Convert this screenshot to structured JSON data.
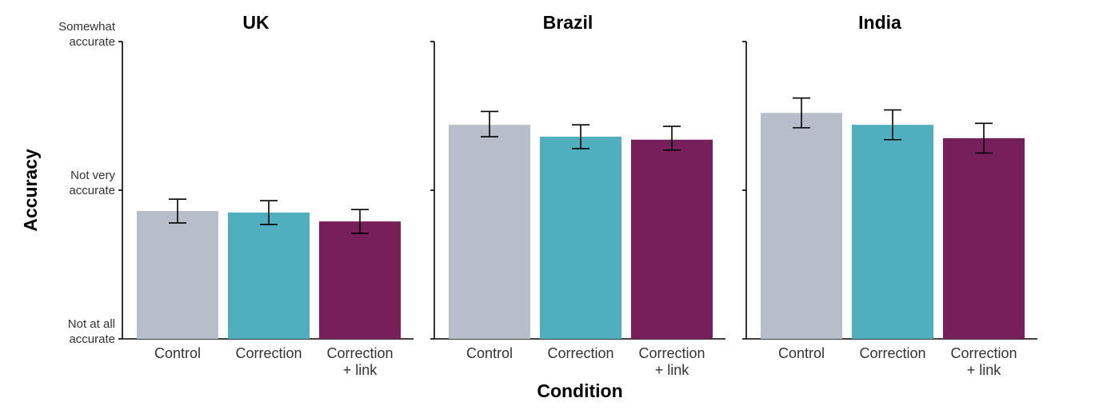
{
  "chart_data": {
    "type": "bar",
    "xlabel": "Condition",
    "ylabel": "Accuracy",
    "ylim": [
      1,
      3
    ],
    "yticks": [
      {
        "value": 1,
        "lines": [
          "Not at all",
          "accurate"
        ]
      },
      {
        "value": 2,
        "lines": [
          "Not very",
          "accurate"
        ]
      },
      {
        "value": 3,
        "lines": [
          "Somewhat",
          "accurate"
        ]
      }
    ],
    "categories": [
      {
        "lines": [
          "Control"
        ],
        "color": "#b8bec9"
      },
      {
        "lines": [
          "Correction"
        ],
        "color": "#50afbf"
      },
      {
        "lines": [
          "Correction",
          "+ link"
        ],
        "color": "#771f5b"
      }
    ],
    "panels": [
      {
        "title": "UK",
        "values": [
          1.86,
          1.85,
          1.79
        ],
        "err_low": [
          1.78,
          1.77,
          1.71
        ],
        "err_high": [
          1.94,
          1.93,
          1.87
        ]
      },
      {
        "title": "Brazil",
        "values": [
          2.44,
          2.36,
          2.34
        ],
        "err_low": [
          2.36,
          2.28,
          2.27
        ],
        "err_high": [
          2.53,
          2.44,
          2.43
        ]
      },
      {
        "title": "India",
        "values": [
          2.52,
          2.44,
          2.35
        ],
        "err_low": [
          2.42,
          2.34,
          2.25
        ],
        "err_high": [
          2.62,
          2.54,
          2.45
        ]
      }
    ],
    "grid": false,
    "legend": "none"
  }
}
